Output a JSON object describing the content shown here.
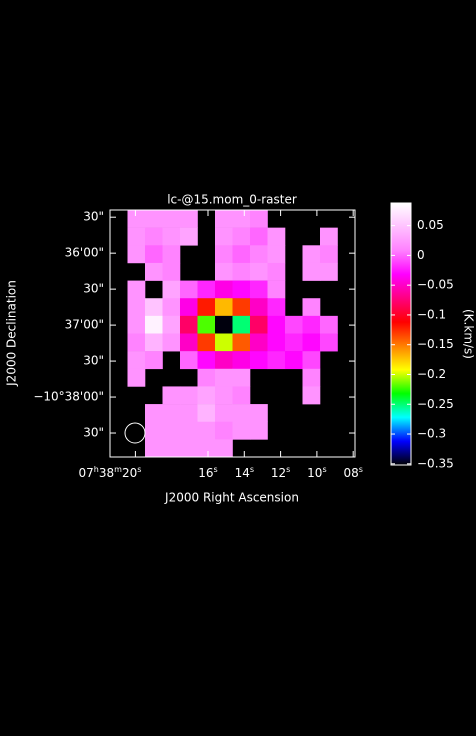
{
  "chart_data": {
    "type": "heatmap",
    "title": "lc-@15.mom_0-raster",
    "x_label": "J2000 Right Ascension",
    "y_label": "J2000 Declination",
    "colorbar_label": "(K.km/s)",
    "xlim": [
      21.4,
      7.9
    ],
    "xticks": [
      {
        "value": 20,
        "label": "07h38m20s"
      },
      {
        "value": 16,
        "label": "16s"
      },
      {
        "value": 14,
        "label": "14s"
      },
      {
        "value": 12,
        "label": "12s"
      },
      {
        "value": 10,
        "label": "10s"
      },
      {
        "value": 8,
        "label": "08s"
      }
    ],
    "ylim": [
      -38330,
      -38124
    ],
    "yticks": [
      {
        "value": -38130,
        "label": "30\""
      },
      {
        "value": -38160,
        "label": "36'00\""
      },
      {
        "value": -38190,
        "label": "30\""
      },
      {
        "value": -38220,
        "label": "37'00\""
      },
      {
        "value": -38250,
        "label": "30\""
      },
      {
        "value": -38280,
        "label": "−10°38'00\""
      },
      {
        "value": -38310,
        "label": "30\""
      }
    ],
    "clim": [
      -0.352,
      0.088
    ],
    "cticks": [
      0.05,
      0,
      {
        "value": -0.05,
        "label": "−0.05"
      },
      {
        "value": -0.1,
        "label": "−0.1"
      },
      {
        "value": -0.15,
        "label": "−0.15"
      },
      {
        "value": -0.2,
        "label": "−0.2"
      },
      {
        "value": -0.25,
        "label": "−0.25"
      },
      {
        "value": -0.3,
        "label": "−0.3"
      },
      {
        "value": -0.35,
        "label": "−0.35"
      }
    ],
    "colormap": [
      "#000000",
      "#0000ff",
      "#00ffff",
      "#00ff00",
      "#ffff00",
      "#ff8000",
      "#ff0000",
      "#ff0080",
      "#ff00ff",
      "#ff80ff",
      "#ffc0ff",
      "#ffffff"
    ],
    "values": [
      [
        null,
        0.02,
        0.02,
        0.02,
        0.02,
        null,
        0.02,
        0.02,
        0.01,
        null,
        null,
        null,
        null,
        null
      ],
      [
        null,
        0.02,
        0.01,
        0.02,
        0.03,
        null,
        0.02,
        0.01,
        0.0,
        0.02,
        null,
        null,
        0.02,
        null
      ],
      [
        null,
        0.02,
        0.0,
        0.01,
        null,
        null,
        0.01,
        0.0,
        0.01,
        0.02,
        null,
        0.02,
        0.01,
        null
      ],
      [
        null,
        null,
        0.02,
        0.01,
        null,
        null,
        0.02,
        0.01,
        0.02,
        0.01,
        null,
        0.02,
        0.02,
        null
      ],
      [
        null,
        0.02,
        null,
        0.03,
        0.0,
        -0.02,
        -0.04,
        -0.03,
        -0.02,
        0.01,
        null,
        null,
        null,
        null
      ],
      [
        null,
        0.02,
        0.05,
        0.02,
        -0.04,
        -0.12,
        -0.17,
        -0.13,
        -0.05,
        -0.02,
        null,
        0.01,
        null,
        null
      ],
      [
        null,
        0.02,
        0.08,
        0.03,
        -0.08,
        -0.22,
        -0.35,
        -0.25,
        -0.08,
        -0.03,
        -0.01,
        -0.02,
        0.0,
        null
      ],
      [
        null,
        0.01,
        0.04,
        0.02,
        -0.05,
        -0.13,
        -0.2,
        -0.14,
        -0.05,
        -0.03,
        -0.02,
        -0.03,
        -0.01,
        null
      ],
      [
        null,
        0.02,
        0.01,
        null,
        0.0,
        -0.03,
        -0.05,
        -0.04,
        -0.03,
        -0.02,
        -0.03,
        -0.01,
        null,
        null
      ],
      [
        null,
        0.02,
        null,
        null,
        null,
        0.01,
        0.02,
        0.02,
        null,
        null,
        null,
        0.01,
        null,
        null
      ],
      [
        null,
        null,
        null,
        0.02,
        0.02,
        0.03,
        0.02,
        0.01,
        null,
        null,
        null,
        0.02,
        null,
        null
      ],
      [
        null,
        null,
        0.02,
        0.02,
        0.02,
        0.04,
        0.02,
        0.02,
        0.02,
        null,
        null,
        null,
        null,
        null
      ],
      [
        null,
        null,
        0.02,
        0.02,
        0.02,
        0.02,
        0.01,
        0.02,
        0.02,
        null,
        null,
        null,
        null,
        null
      ],
      [
        null,
        null,
        0.02,
        0.02,
        0.02,
        0.02,
        0.02,
        null,
        null,
        null,
        null,
        null,
        null,
        null
      ]
    ]
  }
}
